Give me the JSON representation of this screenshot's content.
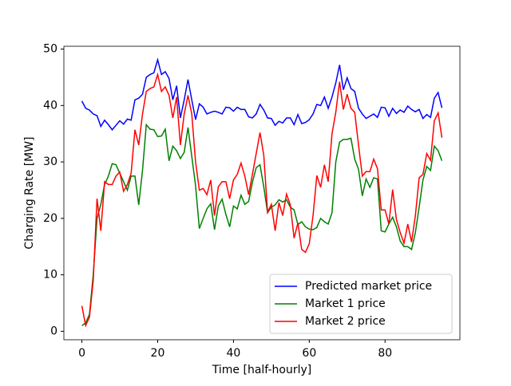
{
  "chart_data": {
    "type": "line",
    "xlabel": "Time [half-hourly]",
    "ylabel": "Charging Rate [MW]",
    "x": [
      0,
      1,
      2,
      3,
      4,
      5,
      6,
      7,
      8,
      9,
      10,
      11,
      12,
      13,
      14,
      15,
      16,
      17,
      18,
      19,
      20,
      21,
      22,
      23,
      24,
      25,
      26,
      27,
      28,
      29,
      30,
      31,
      32,
      33,
      34,
      35,
      36,
      37,
      38,
      39,
      40,
      41,
      42,
      43,
      44,
      45,
      46,
      47,
      48,
      49,
      50,
      51,
      52,
      53,
      54,
      55,
      56,
      57,
      58,
      59,
      60,
      61,
      62,
      63,
      64,
      65,
      66,
      67,
      68,
      69,
      70,
      71,
      72,
      73,
      74,
      75,
      76,
      77,
      78,
      79,
      80,
      81,
      82,
      83,
      84,
      85,
      86,
      87,
      88,
      89,
      90,
      91,
      92,
      93,
      94,
      95
    ],
    "series": [
      {
        "name": "Predicted market price",
        "color": "#0000ff",
        "values": [
          40.8,
          39.5,
          39.2,
          38.5,
          38.2,
          36.3,
          37.4,
          36.6,
          35.7,
          36.5,
          37.3,
          36.7,
          37.6,
          37.4,
          41,
          41.3,
          42,
          45,
          45.5,
          45.8,
          48.1,
          45.5,
          46,
          44.8,
          41,
          43.5,
          37.8,
          41,
          44.6,
          41,
          37.5,
          40.3,
          39.7,
          38.5,
          38.8,
          39,
          38.8,
          38.5,
          39.7,
          39.6,
          39,
          39.7,
          39.3,
          39.3,
          38,
          37.8,
          38.5,
          40.2,
          39.2,
          37.8,
          37.7,
          36.5,
          37.2,
          36.9,
          37.8,
          37.8,
          36.6,
          38.4,
          36.8,
          37,
          37.5,
          38.5,
          40.2,
          40,
          41.5,
          39.5,
          41.5,
          44,
          47.2,
          42.8,
          44.9,
          43,
          42.5,
          39.5,
          38.5,
          37.7,
          38.1,
          38.5,
          37.9,
          39.7,
          39.6,
          38.1,
          39.5,
          38.6,
          39.2,
          38.8,
          39.9,
          39.3,
          38.9,
          39.3,
          37.7,
          38.4,
          37.9,
          41.3,
          42.3,
          39.6
        ]
      },
      {
        "name": "Market 1 price",
        "color": "#008000",
        "values": [
          1,
          1.5,
          3,
          10,
          20,
          22.5,
          26,
          27.5,
          29.7,
          29.5,
          28,
          26.5,
          25,
          27.5,
          27.5,
          22.4,
          28.5,
          36.6,
          35.8,
          35.7,
          34.5,
          34.6,
          35.8,
          30.2,
          32.8,
          32,
          30.6,
          31.7,
          36.1,
          31,
          25.8,
          18.2,
          20,
          21.7,
          22.6,
          18,
          22.2,
          23.4,
          20.7,
          18.5,
          22.2,
          21.7,
          24.1,
          22.5,
          23,
          26.4,
          29,
          29.5,
          25.6,
          21,
          22,
          22.4,
          23.3,
          22.9,
          23.3,
          22,
          21.5,
          18.9,
          19.4,
          18.5,
          18.1,
          18,
          18.4,
          20,
          19.4,
          19,
          21,
          30,
          33.5,
          34,
          34,
          34.2,
          30.5,
          28.7,
          24,
          27,
          25.5,
          27.2,
          27,
          17.8,
          17.6,
          19,
          20.2,
          18.5,
          16,
          15,
          15,
          14.5,
          17.5,
          22,
          26.8,
          29.2,
          28.5,
          32.8,
          32,
          30.2
        ]
      },
      {
        "name": "Market 2 price",
        "color": "#ff0000",
        "values": [
          4.5,
          1,
          2.5,
          9,
          23.5,
          17.8,
          26.5,
          26,
          26,
          27.5,
          28.2,
          24.8,
          26,
          28,
          35.7,
          33,
          38.5,
          42.5,
          43,
          43.3,
          45.5,
          42.5,
          43.3,
          41.8,
          37.8,
          41.5,
          33,
          38.5,
          41.8,
          38.5,
          30,
          25,
          25.3,
          24.2,
          26.8,
          20.5,
          25.6,
          26.5,
          26.5,
          23.5,
          26.8,
          27.8,
          29.8,
          27.5,
          24.2,
          27.8,
          31.5,
          35.2,
          31.2,
          21.1,
          22.5,
          17.8,
          22.8,
          20.5,
          24.3,
          22.4,
          16.5,
          19.2,
          14.5,
          14,
          15.5,
          20.5,
          27.6,
          25.5,
          29.5,
          26.5,
          35,
          38.8,
          44.2,
          39.3,
          42,
          39.5,
          38.8,
          33,
          27.5,
          28.3,
          28.3,
          30.5,
          28.8,
          21.5,
          21.5,
          19,
          25.1,
          19.8,
          17.5,
          15.6,
          19,
          15.8,
          20.5,
          27.2,
          27.8,
          31.5,
          30.3,
          37.3,
          38.7,
          34.3
        ]
      }
    ],
    "xlim": [
      -4.75,
      99.75
    ],
    "xticks": [
      0,
      20,
      40,
      60,
      80
    ],
    "ylim": [
      -1.5,
      50.5
    ],
    "yticks": [
      0,
      10,
      20,
      30,
      40,
      50
    ],
    "grid": false,
    "legend": "lower right"
  }
}
